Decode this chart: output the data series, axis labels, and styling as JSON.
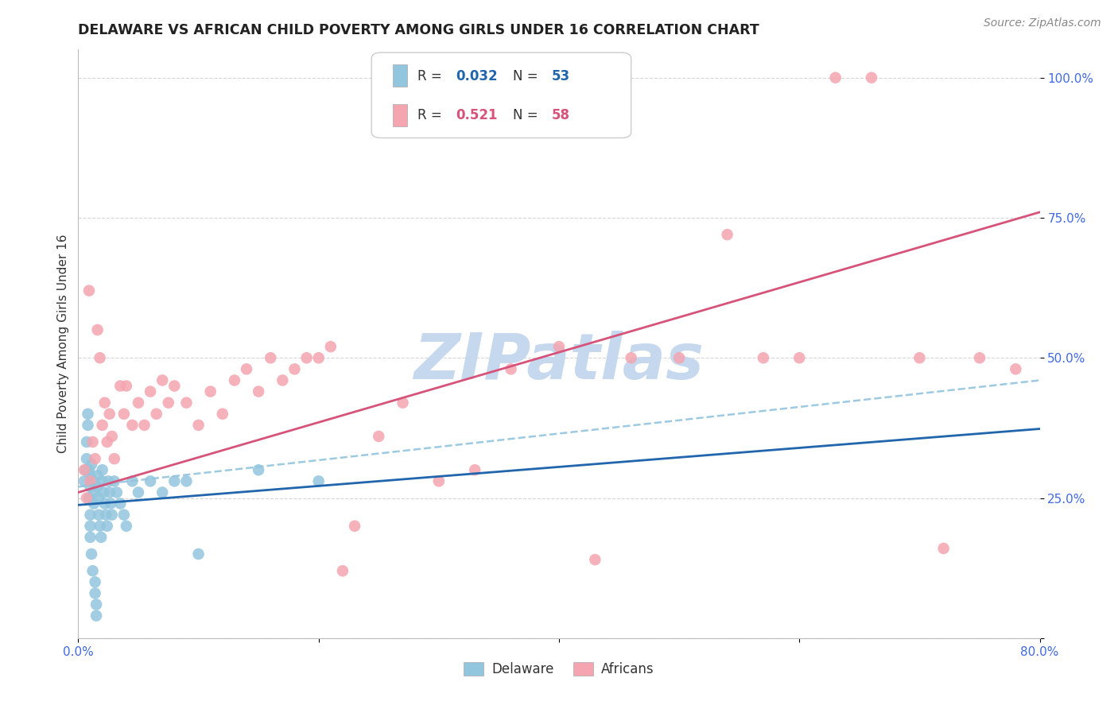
{
  "title": "DELAWARE VS AFRICAN CHILD POVERTY AMONG GIRLS UNDER 16 CORRELATION CHART",
  "source": "Source: ZipAtlas.com",
  "ylabel": "Child Poverty Among Girls Under 16",
  "xlim": [
    0.0,
    0.8
  ],
  "ylim": [
    0.0,
    1.05
  ],
  "delaware_R": 0.032,
  "delaware_N": 53,
  "africans_R": 0.521,
  "africans_N": 58,
  "delaware_color": "#92C5DE",
  "africans_color": "#F4A5B0",
  "delaware_line_color": "#2166AC",
  "africans_line_color": "#D6537A",
  "delaware_dash_color": "#92C5DE",
  "watermark_text": "ZIPatlas",
  "watermark_color": "#C5D8EE",
  "background_color": "#ffffff",
  "grid_color": "#cccccc",
  "title_color": "#222222",
  "axis_tick_color": "#4169E1",
  "source_color": "#888888",
  "legend_text_color": "#333333",
  "delaware_scatter_x": [
    0.005,
    0.006,
    0.007,
    0.007,
    0.008,
    0.008,
    0.009,
    0.009,
    0.01,
    0.01,
    0.01,
    0.01,
    0.01,
    0.011,
    0.011,
    0.012,
    0.012,
    0.013,
    0.013,
    0.014,
    0.014,
    0.015,
    0.015,
    0.016,
    0.016,
    0.017,
    0.017,
    0.018,
    0.019,
    0.02,
    0.02,
    0.021,
    0.022,
    0.023,
    0.024,
    0.025,
    0.026,
    0.027,
    0.028,
    0.03,
    0.032,
    0.035,
    0.038,
    0.04,
    0.045,
    0.05,
    0.06,
    0.07,
    0.08,
    0.09,
    0.1,
    0.15,
    0.2
  ],
  "delaware_scatter_y": [
    0.28,
    0.3,
    0.32,
    0.35,
    0.38,
    0.4,
    0.3,
    0.25,
    0.27,
    0.29,
    0.22,
    0.2,
    0.18,
    0.31,
    0.15,
    0.12,
    0.28,
    0.26,
    0.24,
    0.1,
    0.08,
    0.06,
    0.04,
    0.29,
    0.27,
    0.25,
    0.22,
    0.2,
    0.18,
    0.3,
    0.28,
    0.26,
    0.24,
    0.22,
    0.2,
    0.28,
    0.26,
    0.24,
    0.22,
    0.28,
    0.26,
    0.24,
    0.22,
    0.2,
    0.28,
    0.26,
    0.28,
    0.26,
    0.28,
    0.28,
    0.15,
    0.3,
    0.28
  ],
  "africans_scatter_x": [
    0.005,
    0.007,
    0.009,
    0.01,
    0.012,
    0.014,
    0.016,
    0.018,
    0.02,
    0.022,
    0.024,
    0.026,
    0.028,
    0.03,
    0.035,
    0.038,
    0.04,
    0.045,
    0.05,
    0.055,
    0.06,
    0.065,
    0.07,
    0.075,
    0.08,
    0.09,
    0.1,
    0.11,
    0.12,
    0.13,
    0.14,
    0.15,
    0.16,
    0.17,
    0.18,
    0.19,
    0.2,
    0.21,
    0.22,
    0.23,
    0.25,
    0.27,
    0.3,
    0.33,
    0.36,
    0.4,
    0.43,
    0.46,
    0.5,
    0.54,
    0.57,
    0.6,
    0.63,
    0.66,
    0.7,
    0.72,
    0.75,
    0.78
  ],
  "africans_scatter_y": [
    0.3,
    0.25,
    0.62,
    0.28,
    0.35,
    0.32,
    0.55,
    0.5,
    0.38,
    0.42,
    0.35,
    0.4,
    0.36,
    0.32,
    0.45,
    0.4,
    0.45,
    0.38,
    0.42,
    0.38,
    0.44,
    0.4,
    0.46,
    0.42,
    0.45,
    0.42,
    0.38,
    0.44,
    0.4,
    0.46,
    0.48,
    0.44,
    0.5,
    0.46,
    0.48,
    0.5,
    0.5,
    0.52,
    0.12,
    0.2,
    0.36,
    0.42,
    0.28,
    0.3,
    0.48,
    0.52,
    0.14,
    0.5,
    0.5,
    0.72,
    0.5,
    0.5,
    1.0,
    1.0,
    0.5,
    0.16,
    0.5,
    0.48
  ]
}
